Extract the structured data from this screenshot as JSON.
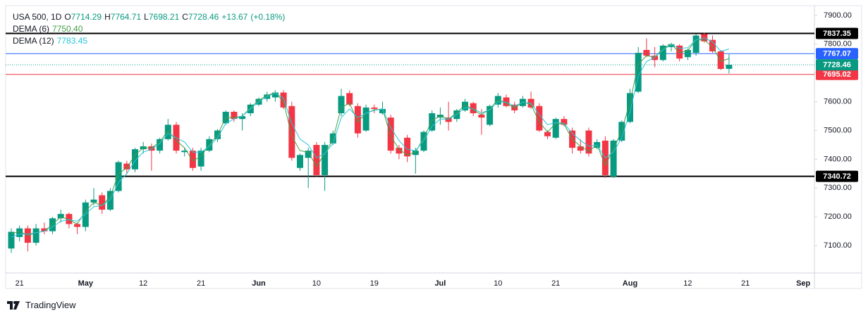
{
  "chart_data": {
    "type": "candlestick",
    "legend": {
      "symbol": "USA 500, 1D",
      "letters": [
        "O",
        "H",
        "L",
        "C"
      ],
      "change": "+13.67",
      "change_pct": "(+0.18%)"
    },
    "categories": [
      null,
      "21",
      null,
      null,
      null,
      null,
      null,
      null,
      null,
      "May",
      null,
      null,
      null,
      null,
      null,
      null,
      "12",
      null,
      null,
      null,
      null,
      null,
      null,
      "21",
      null,
      null,
      null,
      null,
      null,
      null,
      "Jun",
      null,
      null,
      null,
      null,
      null,
      null,
      "10",
      null,
      null,
      null,
      null,
      null,
      null,
      "19",
      null,
      null,
      null,
      null,
      null,
      null,
      null,
      "Jul",
      null,
      null,
      null,
      null,
      null,
      null,
      "10",
      null,
      null,
      null,
      null,
      null,
      null,
      "21",
      null,
      null,
      null,
      null,
      null,
      null,
      null,
      null,
      "Aug",
      null,
      null,
      null,
      null,
      null,
      null,
      "12",
      null,
      null,
      null,
      null,
      null,
      null,
      "21",
      null,
      null,
      null,
      null,
      null,
      null,
      "Sep"
    ],
    "open": [
      7090,
      7130,
      7160,
      7110,
      7160,
      7150,
      7195,
      7210,
      7175,
      7165,
      7250,
      7275,
      7225,
      7290,
      7385,
      7365,
      7435,
      7445,
      7430,
      7470,
      7520,
      7425,
      7430,
      7375,
      7430,
      7470,
      7525,
      7565,
      7540,
      7560,
      7590,
      7610,
      7615,
      7632,
      7585,
      7370,
      7405,
      7450,
      7345,
      7455,
      7560,
      7630,
      7585,
      7500,
      7580,
      7560,
      7545,
      7440,
      7475,
      7415,
      7430,
      7500,
      7545,
      7545,
      7540,
      7570,
      7595,
      7555,
      7520,
      7590,
      7615,
      7590,
      7585,
      7610,
      7585,
      7495,
      7475,
      7540,
      7500,
      7445,
      7500,
      7440,
      7465,
      7340,
      7465,
      7530,
      7635,
      7780,
      7760,
      7745,
      7790,
      7795,
      7755,
      7770,
      7835,
      7815,
      7775,
      7714.29,
      null,
      null,
      null,
      null,
      null,
      null,
      null,
      null,
      null
    ],
    "high": [
      7160,
      7170,
      7170,
      7175,
      7180,
      7200,
      7225,
      7215,
      7180,
      7260,
      7300,
      7285,
      7300,
      7395,
      7395,
      7440,
      7460,
      7455,
      7475,
      7540,
      7530,
      7440,
      7440,
      7440,
      7480,
      7505,
      7570,
      7570,
      7560,
      7595,
      7615,
      7635,
      7640,
      7640,
      7600,
      7420,
      7440,
      7460,
      7460,
      7500,
      7645,
      7640,
      7595,
      7590,
      7590,
      7600,
      7555,
      7450,
      7485,
      7440,
      7500,
      7570,
      7580,
      7600,
      7575,
      7610,
      7600,
      7575,
      7590,
      7630,
      7625,
      7600,
      7620,
      7635,
      7595,
      7500,
      7545,
      7550,
      7510,
      7470,
      7510,
      7470,
      7480,
      7470,
      7535,
      7645,
      7790,
      7820,
      7790,
      7800,
      7805,
      7800,
      7785,
      7835,
      7840,
      7830,
      7780,
      7764.71,
      null,
      null,
      null,
      null,
      null,
      null,
      null,
      null,
      null
    ],
    "low": [
      7075,
      7115,
      7080,
      7100,
      7140,
      7140,
      7180,
      7160,
      7140,
      7150,
      7240,
      7210,
      7220,
      7285,
      7350,
      7355,
      7420,
      7360,
      7420,
      7465,
      7420,
      7410,
      7360,
      7360,
      7425,
      7460,
      7520,
      7530,
      7500,
      7550,
      7585,
      7600,
      7600,
      7575,
      7395,
      7360,
      7300,
      7340,
      7290,
      7450,
      7550,
      7585,
      7475,
      7495,
      7560,
      7555,
      7420,
      7400,
      7390,
      7350,
      7425,
      7495,
      7520,
      7500,
      7530,
      7565,
      7550,
      7485,
      7515,
      7580,
      7580,
      7560,
      7580,
      7575,
      7495,
      7470,
      7470,
      7515,
      7420,
      7420,
      7410,
      7435,
      7335,
      7335,
      7460,
      7525,
      7630,
      7755,
      7720,
      7740,
      7775,
      7740,
      7745,
      7760,
      7805,
      7770,
      7710,
      7698.21,
      null,
      null,
      null,
      null,
      null,
      null,
      null,
      null,
      null
    ],
    "close": [
      7148,
      7160,
      7110,
      7160,
      7150,
      7195,
      7210,
      7175,
      7165,
      7250,
      7260,
      7225,
      7290,
      7390,
      7365,
      7435,
      7445,
      7430,
      7470,
      7520,
      7430,
      7430,
      7370,
      7430,
      7470,
      7500,
      7565,
      7540,
      7550,
      7590,
      7610,
      7625,
      7632,
      7580,
      7405,
      7415,
      7430,
      7345,
      7450,
      7490,
      7620,
      7590,
      7490,
      7580,
      7575,
      7575,
      7430,
      7420,
      7410,
      7430,
      7495,
      7560,
      7555,
      7530,
      7570,
      7600,
      7560,
      7545,
      7585,
      7620,
      7585,
      7570,
      7610,
      7580,
      7500,
      7480,
      7540,
      7520,
      7440,
      7430,
      7420,
      7460,
      7345,
      7465,
      7530,
      7630,
      7770,
      7760,
      7745,
      7795,
      7800,
      7750,
      7780,
      7830,
      7810,
      7775,
      7714,
      7728.46,
      null,
      null,
      null,
      null,
      null,
      null,
      null,
      null,
      null
    ],
    "up_color": "#089981",
    "down_color": "#f23645",
    "indicators": [
      {
        "name": "DEMA (6)",
        "color": "#43a047",
        "last_label": "7750.40",
        "values": [
          7140,
          7150,
          7135,
          7145,
          7150,
          7175,
          7200,
          7190,
          7175,
          7220,
          7250,
          7240,
          7270,
          7350,
          7370,
          7415,
          7440,
          7440,
          7460,
          7500,
          7465,
          7440,
          7395,
          7410,
          7450,
          7485,
          7545,
          7545,
          7550,
          7580,
          7605,
          7622,
          7632,
          7600,
          7480,
          7430,
          7425,
          7375,
          7420,
          7470,
          7580,
          7595,
          7530,
          7560,
          7572,
          7575,
          7480,
          7435,
          7415,
          7425,
          7475,
          7535,
          7550,
          7540,
          7562,
          7590,
          7572,
          7555,
          7575,
          7608,
          7595,
          7578,
          7600,
          7590,
          7530,
          7495,
          7525,
          7522,
          7470,
          7445,
          7428,
          7450,
          7380,
          7435,
          7500,
          7600,
          7730,
          7760,
          7755,
          7785,
          7800,
          7770,
          7778,
          7815,
          7815,
          7790,
          7740,
          7750.4,
          null,
          null,
          null,
          null,
          null,
          null,
          null,
          null,
          null
        ]
      },
      {
        "name": "DEMA (12)",
        "color": "#26c6da",
        "last_label": "7783.45",
        "values": [
          7130,
          7140,
          7140,
          7145,
          7150,
          7165,
          7185,
          7190,
          7185,
          7210,
          7235,
          7240,
          7260,
          7320,
          7350,
          7395,
          7425,
          7435,
          7455,
          7490,
          7475,
          7460,
          7425,
          7425,
          7445,
          7475,
          7525,
          7540,
          7550,
          7575,
          7600,
          7618,
          7630,
          7612,
          7525,
          7470,
          7450,
          7405,
          7420,
          7455,
          7545,
          7575,
          7545,
          7560,
          7570,
          7575,
          7510,
          7465,
          7435,
          7430,
          7465,
          7515,
          7540,
          7540,
          7555,
          7580,
          7575,
          7562,
          7572,
          7600,
          7598,
          7585,
          7598,
          7595,
          7555,
          7520,
          7528,
          7525,
          7490,
          7465,
          7445,
          7450,
          7405,
          7425,
          7475,
          7565,
          7690,
          7740,
          7755,
          7780,
          7798,
          7785,
          7788,
          7815,
          7822,
          7808,
          7775,
          7783.45,
          null,
          null,
          null,
          null,
          null,
          null,
          null,
          null,
          null
        ]
      }
    ],
    "price_lines": [
      {
        "value": 7837.35,
        "color": "#000000"
      },
      {
        "value": 7767.07,
        "color": "#2962ff"
      },
      {
        "value": 7695.02,
        "color": "#f23645"
      },
      {
        "value": 7340.72,
        "color": "#000000"
      }
    ],
    "ylim": [
      7005,
      7934
    ],
    "yticks": [
      {
        "value": 7100,
        "label": "7100.00"
      },
      {
        "value": 7200,
        "label": "7200.00"
      },
      {
        "value": 7300,
        "label": "7300.00"
      },
      {
        "value": 7400,
        "label": "7400.00"
      },
      {
        "value": 7500,
        "label": "7500.00"
      },
      {
        "value": 7600,
        "label": "7600.00"
      },
      {
        "value": 7700,
        "label": "7700.00"
      },
      {
        "value": 7800,
        "label": "7800.00"
      },
      {
        "value": 7900,
        "label": "7900.00"
      }
    ],
    "grid": false
  },
  "footer": {
    "brand": "TradingView"
  }
}
